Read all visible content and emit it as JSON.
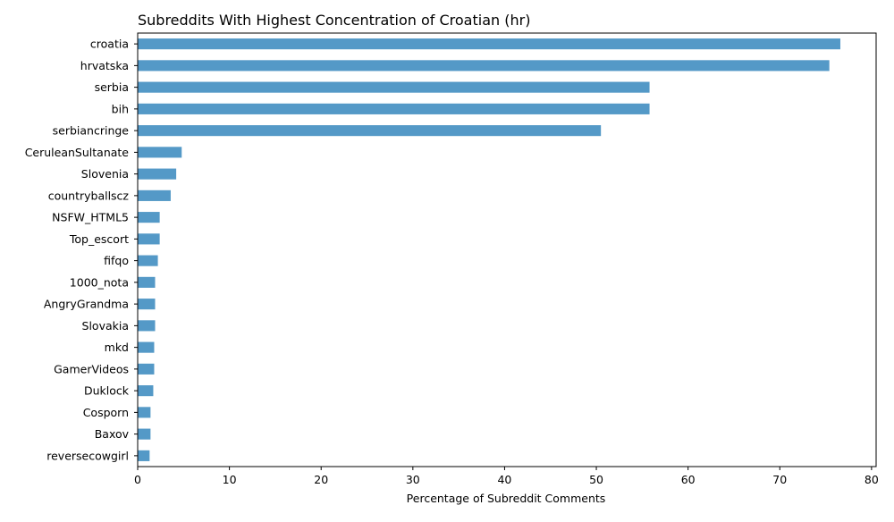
{
  "chart_data": {
    "type": "bar",
    "orientation": "horizontal",
    "title": "Subreddits With Highest Concentration of Croatian (hr)",
    "xlabel": "Percentage of Subreddit Comments",
    "ylabel": "",
    "xlim": [
      0,
      80.5
    ],
    "xticks": [
      "0",
      "10",
      "20",
      "30",
      "40",
      "50",
      "60",
      "70",
      "80"
    ],
    "grid": false,
    "bar_color": "#5499c7",
    "categories": [
      "croatia",
      "hrvatska",
      "serbia",
      "bih",
      "serbiancringe",
      "CeruleanSultanate",
      "Slovenia",
      "countryballscz",
      "NSFW_HTML5",
      "Top_escort",
      "fifqo",
      "1000_nota",
      "AngryGrandma",
      "Slovakia",
      "mkd",
      "GamerVideos",
      "Duklock",
      "Cosporn",
      "Baxov",
      "reversecowgirl"
    ],
    "values": [
      76.6,
      75.4,
      55.8,
      55.8,
      50.5,
      4.8,
      4.2,
      3.6,
      2.4,
      2.4,
      2.2,
      1.9,
      1.9,
      1.9,
      1.8,
      1.8,
      1.7,
      1.4,
      1.4,
      1.3
    ]
  }
}
